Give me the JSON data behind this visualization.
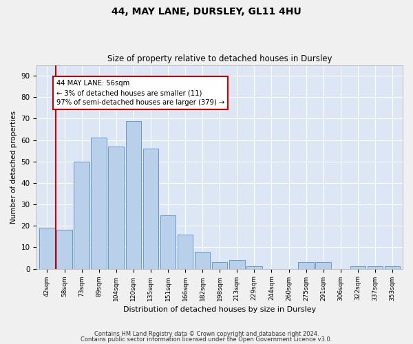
{
  "title1": "44, MAY LANE, DURSLEY, GL11 4HU",
  "title2": "Size of property relative to detached houses in Dursley",
  "xlabel": "Distribution of detached houses by size in Dursley",
  "ylabel": "Number of detached properties",
  "categories": [
    "42sqm",
    "58sqm",
    "73sqm",
    "89sqm",
    "104sqm",
    "120sqm",
    "135sqm",
    "151sqm",
    "166sqm",
    "182sqm",
    "198sqm",
    "213sqm",
    "229sqm",
    "244sqm",
    "260sqm",
    "275sqm",
    "291sqm",
    "306sqm",
    "322sqm",
    "337sqm",
    "353sqm"
  ],
  "values": [
    19,
    18,
    50,
    61,
    57,
    69,
    56,
    25,
    16,
    8,
    3,
    4,
    1,
    0,
    0,
    3,
    3,
    0,
    1,
    1,
    1
  ],
  "bar_color": "#b8d0ea",
  "bar_edge_color": "#6699cc",
  "vline_x_index": 1,
  "vline_color": "#cc0000",
  "annotation_text": "44 MAY LANE: 56sqm\n← 3% of detached houses are smaller (11)\n97% of semi-detached houses are larger (379) →",
  "annotation_box_color": "#ffffff",
  "annotation_box_edge": "#cc0000",
  "ylim": [
    0,
    95
  ],
  "yticks": [
    0,
    10,
    20,
    30,
    40,
    50,
    60,
    70,
    80,
    90
  ],
  "background_color": "#dce6f5",
  "fig_background": "#f0f0f0",
  "footer1": "Contains HM Land Registry data © Crown copyright and database right 2024.",
  "footer2": "Contains public sector information licensed under the Open Government Licence v3.0."
}
